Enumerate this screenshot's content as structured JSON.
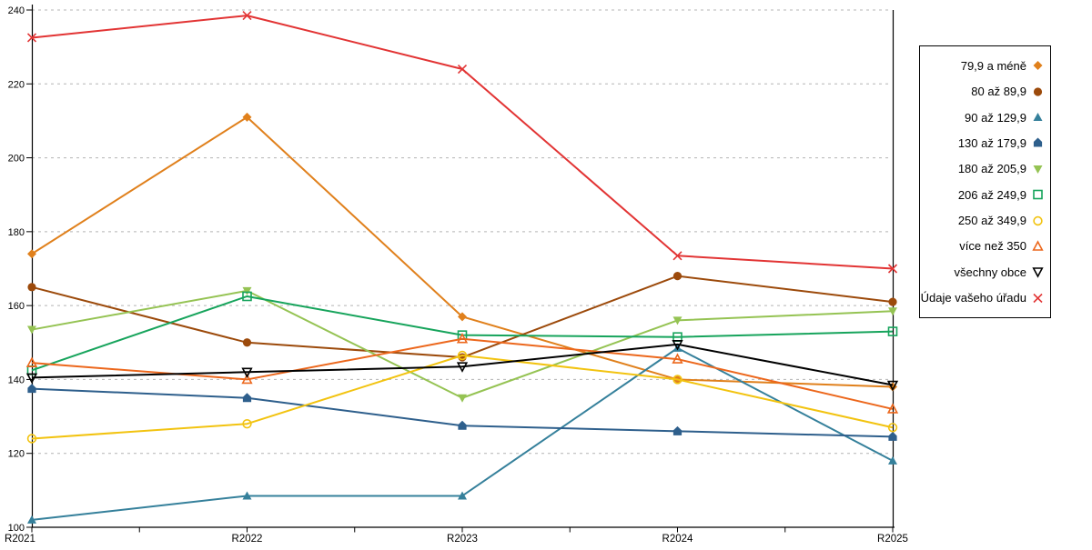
{
  "chart_data": {
    "type": "line",
    "title": "",
    "xlabel": "",
    "ylabel": "",
    "x_categories": [
      "R2021",
      "R2022",
      "R2023",
      "R2024",
      "R2025"
    ],
    "y_ticks": [
      100,
      120,
      140,
      160,
      180,
      200,
      220,
      240
    ],
    "ylim": [
      100,
      240
    ],
    "grid": "horizontal-dashed",
    "legend_position": "right",
    "series": [
      {
        "name": "79,9 a méně",
        "color": "#E0801C",
        "marker": "diamond-filled",
        "values": [
          174,
          211,
          157,
          140,
          138
        ]
      },
      {
        "name": "80 až 89,9",
        "color": "#9C4A0B",
        "marker": "circle-filled",
        "values": [
          165,
          150,
          146,
          168,
          161
        ]
      },
      {
        "name": "90 až 129,9",
        "color": "#35809B",
        "marker": "triangle-up-filled",
        "values": [
          102,
          108.5,
          108.5,
          148.5,
          118
        ]
      },
      {
        "name": "130 až 179,9",
        "color": "#2E5F8C",
        "marker": "pentagon-filled",
        "values": [
          137.5,
          135,
          127.5,
          126,
          124.5
        ]
      },
      {
        "name": "180 až 205,9",
        "color": "#95C353",
        "marker": "triangle-down-filled",
        "values": [
          153.5,
          164,
          135,
          156,
          158.5
        ]
      },
      {
        "name": "206 až 249,9",
        "color": "#17A45C",
        "marker": "square-open",
        "values": [
          142.5,
          162.5,
          152,
          151.5,
          153
        ]
      },
      {
        "name": "250 až 349,9",
        "color": "#F2C310",
        "marker": "circle-open",
        "values": [
          124,
          128,
          146.5,
          140,
          127
        ]
      },
      {
        "name": "více než 350",
        "color": "#EC671C",
        "marker": "triangle-up-open",
        "values": [
          144.5,
          140,
          151,
          145.5,
          132
        ]
      },
      {
        "name": "všechny obce",
        "color": "#000000",
        "marker": "triangle-down-open",
        "values": [
          140.5,
          142,
          143.5,
          149.5,
          138.5
        ]
      },
      {
        "name": "Údaje vašeho úřadu",
        "color": "#E23434",
        "marker": "x",
        "values": [
          232.5,
          238.5,
          224,
          173.5,
          170
        ]
      }
    ]
  }
}
